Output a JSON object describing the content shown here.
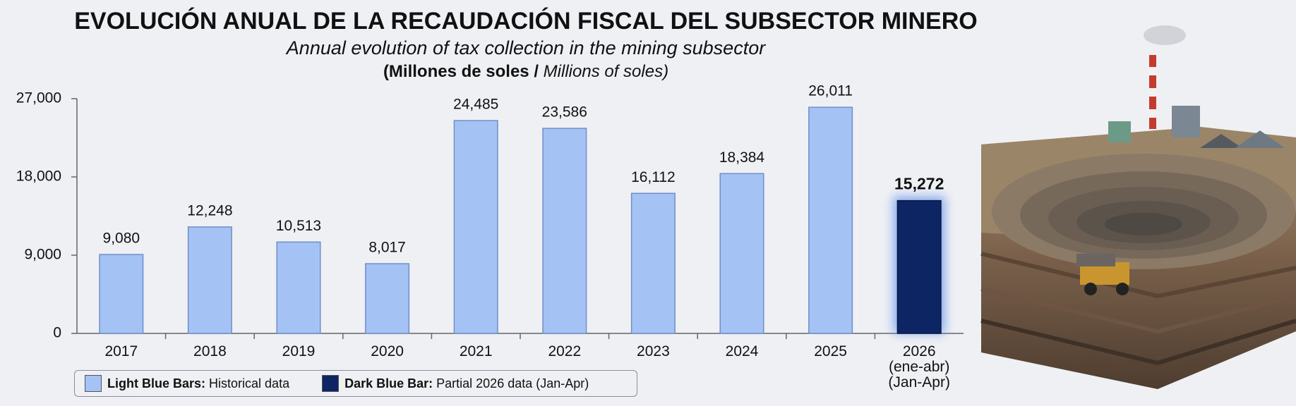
{
  "chart_data": {
    "type": "bar",
    "title": "EVOLUCIÓN ANUAL DE LA RECAUDACIÓN FISCAL DEL SUBSECTOR MINERO",
    "subtitle": "Annual evolution of tax collection in the mining subsector",
    "unit_label": [
      "(Millones de soles /",
      "Millions of soles)"
    ],
    "categories": [
      "2017",
      "2018",
      "2019",
      "2020",
      "2021",
      "2022",
      "2023",
      "2024",
      "2025",
      "2026\n(ene-abr)\n(Jan-Apr)"
    ],
    "values": [
      9080,
      12248,
      10513,
      8017,
      24485,
      23586,
      16112,
      18384,
      26011,
      15272
    ],
    "value_labels": [
      "9,080",
      "12,248",
      "10,513",
      "8,017",
      "24,485",
      "23,586",
      "16,112",
      "18,384",
      "26,011",
      "15,272"
    ],
    "colors": [
      "#a4c2f4",
      "#a4c2f4",
      "#a4c2f4",
      "#a4c2f4",
      "#a4c2f4",
      "#a4c2f4",
      "#a4c2f4",
      "#a4c2f4",
      "#a4c2f4",
      "#0d2563"
    ],
    "ylim": [
      0,
      27000
    ],
    "yticks": [
      0,
      {
        "value": 9000,
        "label": "9,000"
      },
      {
        "value": 18000,
        "label": "18,000"
      },
      {
        "value": 27000,
        "label": "27,000"
      }
    ],
    "legend": [
      {
        "label": "Light Blue Bars:",
        "text": "Historical data",
        "color": "#a4c2f4"
      },
      {
        "label": "Dark Blue Bar:",
        "text": "Partial 2026 data (Jan-Apr)",
        "color": "#0d2563"
      }
    ]
  }
}
